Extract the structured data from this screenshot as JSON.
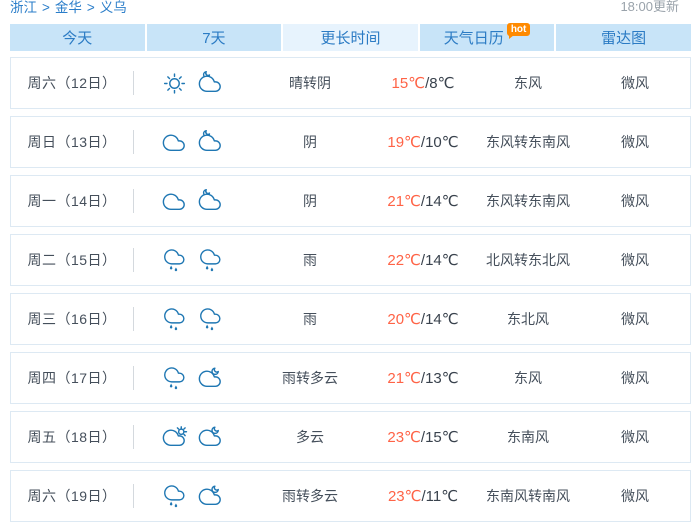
{
  "breadcrumb": {
    "items": [
      "浙江",
      "金华",
      "义乌"
    ],
    "separator": ">",
    "updated": "18:00更新"
  },
  "tabs": [
    {
      "label": "今天",
      "active": false,
      "badge": ""
    },
    {
      "label": "7天",
      "active": false,
      "badge": ""
    },
    {
      "label": "更长时间",
      "active": true,
      "badge": ""
    },
    {
      "label": "天气日历",
      "active": false,
      "badge": "hot"
    },
    {
      "label": "雷达图",
      "active": false,
      "badge": ""
    }
  ],
  "forecast": {
    "temp_separator": "/",
    "rows": [
      {
        "day": "周六（12日）",
        "day_icon": "sun",
        "night_icon": "cloud-moon",
        "weather": "晴转阴",
        "high": "15℃",
        "low": "8℃",
        "wind": "东风",
        "wind_level": "微风"
      },
      {
        "day": "周日（13日）",
        "day_icon": "cloud",
        "night_icon": "cloud-moon",
        "weather": "阴",
        "high": "19℃",
        "low": "10℃",
        "wind": "东风转东南风",
        "wind_level": "微风"
      },
      {
        "day": "周一（14日）",
        "day_icon": "cloud",
        "night_icon": "cloud-moon",
        "weather": "阴",
        "high": "21℃",
        "low": "14℃",
        "wind": "东风转东南风",
        "wind_level": "微风"
      },
      {
        "day": "周二（15日）",
        "day_icon": "cloud-rain",
        "night_icon": "cloud-rain",
        "weather": "雨",
        "high": "22℃",
        "low": "14℃",
        "wind": "北风转东北风",
        "wind_level": "微风"
      },
      {
        "day": "周三（16日）",
        "day_icon": "cloud-rain",
        "night_icon": "cloud-rain",
        "weather": "雨",
        "high": "20℃",
        "low": "14℃",
        "wind": "东北风",
        "wind_level": "微风"
      },
      {
        "day": "周四（17日）",
        "day_icon": "cloud-rain",
        "night_icon": "cloud-moon-right",
        "weather": "雨转多云",
        "high": "21℃",
        "low": "13℃",
        "wind": "东风",
        "wind_level": "微风"
      },
      {
        "day": "周五（18日）",
        "day_icon": "cloud-sun",
        "night_icon": "cloud-moon-right",
        "weather": "多云",
        "high": "23℃",
        "low": "15℃",
        "wind": "东南风",
        "wind_level": "微风"
      },
      {
        "day": "周六（19日）",
        "day_icon": "cloud-rain",
        "night_icon": "cloud-moon-right",
        "weather": "雨转多云",
        "high": "23℃",
        "low": "11℃",
        "wind": "东南风转南风",
        "wind_level": "微风"
      }
    ]
  },
  "colors": {
    "accent_blue": "#2a7dc9",
    "tab_bg": "#c8e4f8",
    "tab_active_bg": "#e7f3fd",
    "temp_high": "#ff6346",
    "icon_blue": "#1f77b3",
    "badge_orange": "#ff8a00"
  }
}
